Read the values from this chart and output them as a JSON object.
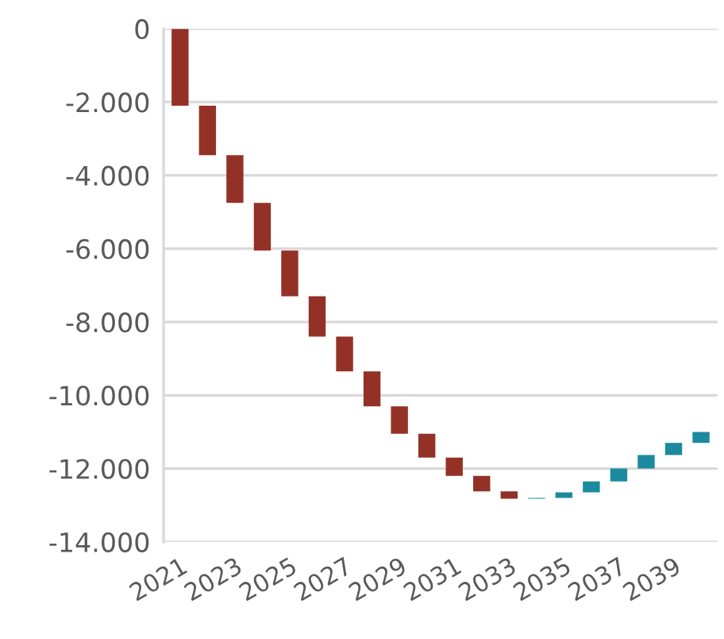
{
  "chart_data": {
    "type": "bar",
    "categories": [
      "2021",
      null,
      "2023",
      null,
      "2025",
      null,
      "2027",
      null,
      "2029",
      null,
      "2031",
      null,
      "2033",
      null,
      "2035",
      null,
      "2037",
      null,
      "2039",
      null
    ],
    "base": [
      0,
      -2100,
      -3450,
      -4750,
      -6050,
      -7300,
      -8400,
      -9350,
      -10300,
      -11050,
      -11700,
      -12200,
      -12620,
      -12820,
      -12800,
      -12650,
      -12350,
      -12000,
      -11630,
      -11300
    ],
    "values": [
      -2100,
      -1350,
      -1300,
      -1300,
      -1250,
      -1100,
      -950,
      -950,
      -750,
      -650,
      -500,
      -420,
      -200,
      20,
      150,
      300,
      350,
      370,
      330,
      300
    ],
    "colors": [
      "#943126",
      "#943126",
      "#943126",
      "#943126",
      "#943126",
      "#943126",
      "#943126",
      "#943126",
      "#943126",
      "#943126",
      "#943126",
      "#943126",
      "#943126",
      "#1b8a9e",
      "#1b8a9e",
      "#1b8a9e",
      "#1b8a9e",
      "#1b8a9e",
      "#1b8a9e",
      "#1b8a9e"
    ],
    "ylim": [
      -14000,
      0
    ],
    "yticks": [
      {
        "value": -14000,
        "label": "-14.000"
      },
      {
        "value": -12000,
        "label": "-12.000"
      },
      {
        "value": -10000,
        "label": "-10.000"
      },
      {
        "value": -8000,
        "label": "-8.000"
      },
      {
        "value": -6000,
        "label": "-6.000"
      },
      {
        "value": -4000,
        "label": "-4.000"
      },
      {
        "value": -2000,
        "label": "-2.000"
      },
      0
    ],
    "grid": "y"
  }
}
